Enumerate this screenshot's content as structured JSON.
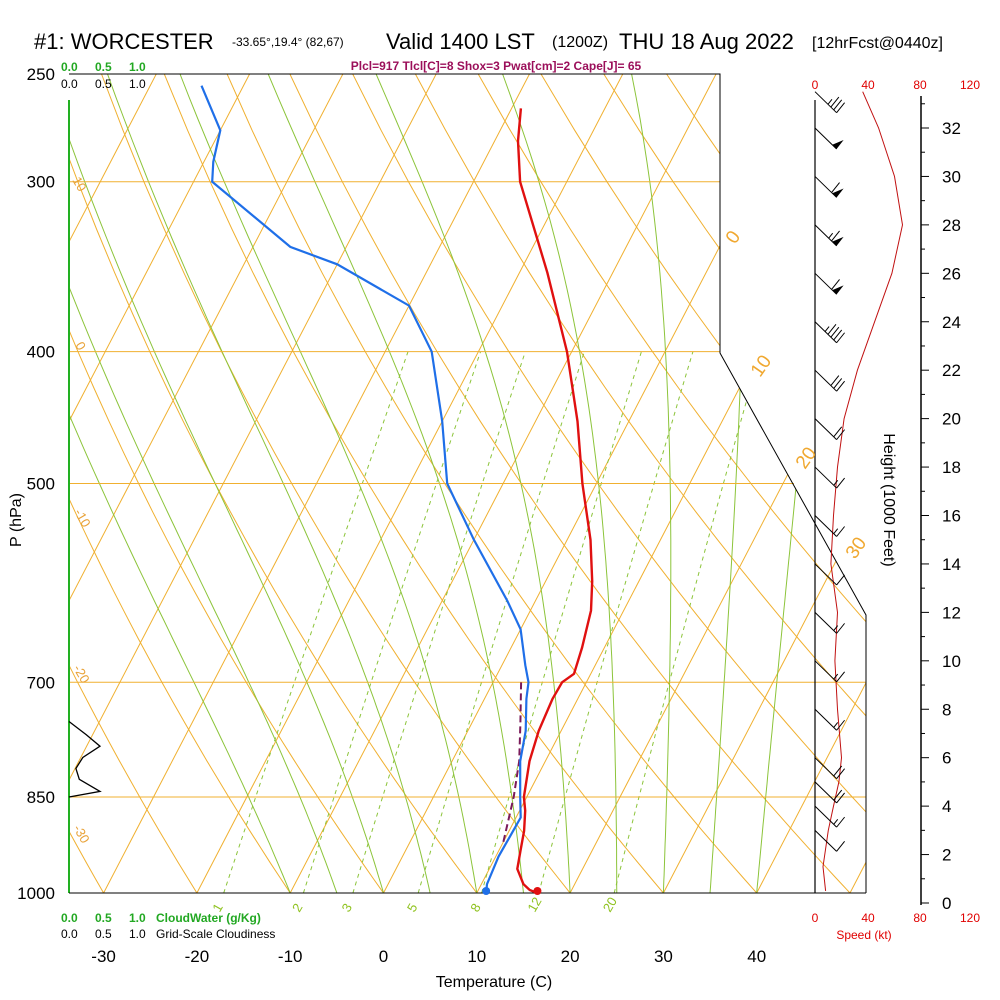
{
  "header": {
    "station": "#1: WORCESTER",
    "coords": "-33.65°,19.4° (82,67)",
    "valid": "Valid 1400 LST",
    "utc": "(1200Z)",
    "date": "THU 18 Aug 2022",
    "forecast": "[12hrFcst@0440z]"
  },
  "indices_line": "Plcl=917 Tlcl[C]=8 Shox=3 Pwat[cm]=2 Cape[J]= 65",
  "cloud_scale": {
    "top_green": [
      "0.0",
      "0.5",
      "1.0"
    ],
    "top_black": [
      "0.0",
      "0.5",
      "1.0"
    ],
    "bottom_green": [
      "0.0",
      "0.5",
      "1.0"
    ],
    "bottom_black": [
      "0.0",
      "0.5",
      "1.0"
    ],
    "cloudwater_label": "CloudWater (g/Kg)",
    "cloudiness_label": "Grid-Scale Cloudiness"
  },
  "speed_scale": {
    "top": [
      "0",
      "40",
      "80",
      "120"
    ],
    "bottom": [
      "0",
      "40",
      "80",
      "120"
    ],
    "label": "Speed (kt)"
  },
  "axes": {
    "xlabel": "Temperature (C)",
    "ylabel": "P (hPa)",
    "height_label": "Height (1000 Feet)",
    "x_ticks": [
      "-30",
      "-20",
      "-10",
      "0",
      "10",
      "20",
      "30",
      "40"
    ],
    "p_ticks": [
      "250",
      "300",
      "400",
      "500",
      "700",
      "850",
      "1000"
    ],
    "height_ticks": [
      "0",
      "2",
      "4",
      "6",
      "8",
      "10",
      "12",
      "14",
      "16",
      "18",
      "20",
      "22",
      "24",
      "26",
      "28",
      "30",
      "32"
    ]
  },
  "overlay_labels": {
    "moist_adiabats": [
      "0",
      "10",
      "20",
      "30"
    ],
    "dry_adiabats": [
      "10",
      "0",
      "-10",
      "-20",
      "-30"
    ],
    "mixing_ratio": [
      "1",
      "2",
      "3",
      "5",
      "8",
      "12",
      "20"
    ]
  },
  "chart_data": {
    "type": "skew-t",
    "title": "#1: WORCESTER Valid 1400 LST (1200Z) THU 18 Aug 2022",
    "xlabel": "Temperature (C)",
    "ylabel": "P (hPa)",
    "xlim": [
      -34,
      45
    ],
    "plim": [
      1000,
      250
    ],
    "pressure_levels": [
      1000,
      850,
      700,
      500,
      400,
      300,
      250
    ],
    "temperature": [
      {
        "p": 1000,
        "t": 16.5
      },
      {
        "p": 995,
        "t": 15.5
      },
      {
        "p": 985,
        "t": 14.5
      },
      {
        "p": 960,
        "t": 13.0
      },
      {
        "p": 930,
        "t": 12.3
      },
      {
        "p": 900,
        "t": 11.6
      },
      {
        "p": 870,
        "t": 10.6
      },
      {
        "p": 850,
        "t": 9.7
      },
      {
        "p": 800,
        "t": 8.3
      },
      {
        "p": 760,
        "t": 7.6
      },
      {
        "p": 720,
        "t": 7.3
      },
      {
        "p": 700,
        "t": 7.4
      },
      {
        "p": 690,
        "t": 8.2
      },
      {
        "p": 660,
        "t": 7.6
      },
      {
        "p": 620,
        "t": 6.5
      },
      {
        "p": 590,
        "t": 5.0
      },
      {
        "p": 550,
        "t": 2.5
      },
      {
        "p": 500,
        "t": -1.5
      },
      {
        "p": 450,
        "t": -5.5
      },
      {
        "p": 400,
        "t": -10.5
      },
      {
        "p": 350,
        "t": -17.0
      },
      {
        "p": 300,
        "t": -25.0
      },
      {
        "p": 280,
        "t": -27.5
      },
      {
        "p": 265,
        "t": -29.0
      }
    ],
    "dewpoint": [
      {
        "p": 1000,
        "t": 11.0
      },
      {
        "p": 985,
        "t": 10.6
      },
      {
        "p": 940,
        "t": 10.3
      },
      {
        "p": 910,
        "t": 10.4
      },
      {
        "p": 880,
        "t": 10.5
      },
      {
        "p": 850,
        "t": 9.3
      },
      {
        "p": 800,
        "t": 7.3
      },
      {
        "p": 760,
        "t": 6.2
      },
      {
        "p": 720,
        "t": 4.5
      },
      {
        "p": 700,
        "t": 3.8
      },
      {
        "p": 680,
        "t": 2.5
      },
      {
        "p": 640,
        "t": 0.0
      },
      {
        "p": 610,
        "t": -3.0
      },
      {
        "p": 550,
        "t": -10.0
      },
      {
        "p": 500,
        "t": -16.0
      },
      {
        "p": 450,
        "t": -20.0
      },
      {
        "p": 400,
        "t": -25.0
      },
      {
        "p": 370,
        "t": -30.0
      },
      {
        "p": 345,
        "t": -40.0
      },
      {
        "p": 335,
        "t": -46.0
      },
      {
        "p": 300,
        "t": -58.0
      },
      {
        "p": 290,
        "t": -59.0
      },
      {
        "p": 275,
        "t": -60.0
      },
      {
        "p": 255,
        "t": -64.5
      }
    ],
    "parcel": [
      {
        "p": 917,
        "t": 10.0
      },
      {
        "p": 850,
        "t": 8.6
      },
      {
        "p": 800,
        "t": 7.2
      },
      {
        "p": 750,
        "t": 5.2
      },
      {
        "p": 700,
        "t": 3.0
      }
    ],
    "surface_temperature": 16.5,
    "surface_dewpoint": 11.0,
    "indices": {
      "Plcl": 917,
      "Tlcl_C": 8,
      "Shox": 3,
      "Pwat_cm": 2,
      "Cape_J": 65
    },
    "wind_speed_profile_kt": [
      {
        "h_kft": 0.5,
        "spd": 8
      },
      {
        "h_kft": 1.5,
        "spd": 6
      },
      {
        "h_kft": 3,
        "spd": 10
      },
      {
        "h_kft": 4,
        "spd": 14
      },
      {
        "h_kft": 5,
        "spd": 18
      },
      {
        "h_kft": 6,
        "spd": 20
      },
      {
        "h_kft": 8,
        "spd": 17
      },
      {
        "h_kft": 10,
        "spd": 15
      },
      {
        "h_kft": 12,
        "spd": 17
      },
      {
        "h_kft": 14,
        "spd": 12
      },
      {
        "h_kft": 16,
        "spd": 14
      },
      {
        "h_kft": 18,
        "spd": 17
      },
      {
        "h_kft": 20,
        "spd": 22
      },
      {
        "h_kft": 22,
        "spd": 32
      },
      {
        "h_kft": 24,
        "spd": 45
      },
      {
        "h_kft": 26,
        "spd": 58
      },
      {
        "h_kft": 28,
        "spd": 66
      },
      {
        "h_kft": 30,
        "spd": 60
      },
      {
        "h_kft": 32,
        "spd": 48
      },
      {
        "h_kft": 33.5,
        "spd": 36
      }
    ],
    "cloud_fraction_profile": [
      {
        "p": 850,
        "f": 0.0
      },
      {
        "p": 842,
        "f": 0.45
      },
      {
        "p": 825,
        "f": 0.15
      },
      {
        "p": 810,
        "f": 0.1
      },
      {
        "p": 795,
        "f": 0.2
      },
      {
        "p": 780,
        "f": 0.45
      },
      {
        "p": 765,
        "f": 0.25
      },
      {
        "p": 748,
        "f": 0.0
      }
    ]
  }
}
